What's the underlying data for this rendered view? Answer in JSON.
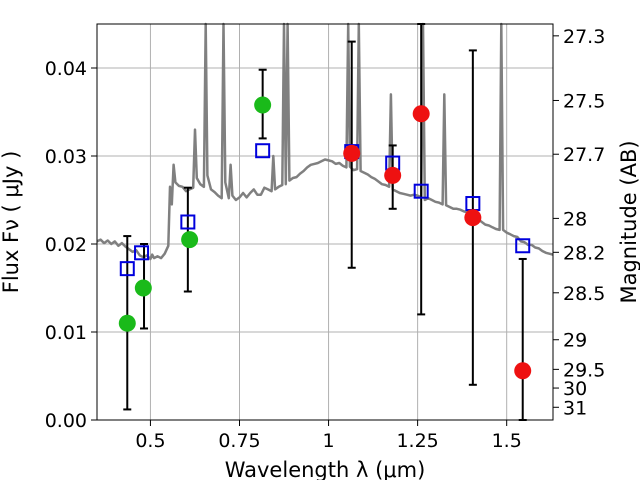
{
  "chart_data": {
    "type": "scatter",
    "title": "",
    "xlabel": "Wavelength  λ (μm)",
    "ylabel": "Flux  Fν  ( μJy )",
    "y2label": "Magnitude (AB)",
    "xlim": [
      0.35,
      1.63
    ],
    "ylim": [
      0.0,
      0.045
    ],
    "grid": true,
    "x_ticks": [
      {
        "value": 0.5,
        "label": "0.5"
      },
      {
        "value": 0.75,
        "label": "0.75"
      },
      {
        "value": 1.0,
        "label": "1"
      },
      {
        "value": 1.25,
        "label": "1.25"
      },
      {
        "value": 1.5,
        "label": "1.5"
      }
    ],
    "y_ticks": [
      {
        "value": 0.0,
        "label": "0.00"
      },
      {
        "value": 0.01,
        "label": "0.01"
      },
      {
        "value": 0.02,
        "label": "0.02"
      },
      {
        "value": 0.03,
        "label": "0.03"
      },
      {
        "value": 0.04,
        "label": "0.04"
      }
    ],
    "y2_ticks": [
      {
        "mag": 27.3,
        "label": "27.3"
      },
      {
        "mag": 27.5,
        "label": "27.5"
      },
      {
        "mag": 27.7,
        "label": "27.7"
      },
      {
        "mag": 28.0,
        "label": "28"
      },
      {
        "mag": 28.2,
        "label": "28.2"
      },
      {
        "mag": 28.5,
        "label": "28.5"
      },
      {
        "mag": 29.0,
        "label": "29"
      },
      {
        "mag": 29.5,
        "label": "29.5"
      },
      {
        "mag": 30.0,
        "label": "30"
      },
      {
        "mag": 31.0,
        "label": "31"
      }
    ],
    "colors": {
      "model": "#808080",
      "green": "#1aba1a",
      "red": "#ee1111",
      "box": "#0000dd",
      "errorbar": "#000000",
      "grid": "#b0b0b0"
    },
    "series": [
      {
        "kind": "model",
        "points": [
          [
            0.35,
            0.0203
          ],
          [
            0.36,
            0.0205
          ],
          [
            0.37,
            0.0201
          ],
          [
            0.38,
            0.0204
          ],
          [
            0.39,
            0.02
          ],
          [
            0.4,
            0.0203
          ],
          [
            0.41,
            0.0198
          ],
          [
            0.42,
            0.0201
          ],
          [
            0.43,
            0.0197
          ],
          [
            0.44,
            0.0194
          ],
          [
            0.45,
            0.0191
          ],
          [
            0.46,
            0.0193
          ],
          [
            0.47,
            0.0187
          ],
          [
            0.48,
            0.0185
          ],
          [
            0.49,
            0.0187
          ],
          [
            0.5,
            0.0183
          ],
          [
            0.505,
            0.0188
          ],
          [
            0.51,
            0.0184
          ],
          [
            0.52,
            0.0186
          ],
          [
            0.53,
            0.0184
          ],
          [
            0.54,
            0.0189
          ],
          [
            0.55,
            0.0198
          ],
          [
            0.555,
            0.0265
          ],
          [
            0.56,
            0.0245
          ],
          [
            0.565,
            0.029
          ],
          [
            0.57,
            0.027
          ],
          [
            0.58,
            0.0266
          ],
          [
            0.59,
            0.0265
          ],
          [
            0.6,
            0.026
          ],
          [
            0.61,
            0.0262
          ],
          [
            0.62,
            0.0264
          ],
          [
            0.625,
            0.033
          ],
          [
            0.63,
            0.0275
          ],
          [
            0.64,
            0.0268
          ],
          [
            0.65,
            0.0265
          ],
          [
            0.655,
            0.045
          ],
          [
            0.66,
            0.0278
          ],
          [
            0.67,
            0.0262
          ],
          [
            0.68,
            0.0259
          ],
          [
            0.69,
            0.0255
          ],
          [
            0.7,
            0.0252
          ],
          [
            0.705,
            0.045
          ],
          [
            0.71,
            0.027
          ],
          [
            0.72,
            0.0252
          ],
          [
            0.725,
            0.029
          ],
          [
            0.73,
            0.0255
          ],
          [
            0.74,
            0.025
          ],
          [
            0.75,
            0.0253
          ],
          [
            0.76,
            0.0258
          ],
          [
            0.77,
            0.0253
          ],
          [
            0.78,
            0.0258
          ],
          [
            0.79,
            0.0262
          ],
          [
            0.8,
            0.0256
          ],
          [
            0.81,
            0.0256
          ],
          [
            0.82,
            0.0264
          ],
          [
            0.83,
            0.0262
          ],
          [
            0.84,
            0.026
          ],
          [
            0.845,
            0.03
          ],
          [
            0.85,
            0.0262
          ],
          [
            0.86,
            0.0265
          ],
          [
            0.87,
            0.0267
          ],
          [
            0.875,
            0.045
          ],
          [
            0.88,
            0.0268
          ],
          [
            0.885,
            0.045
          ],
          [
            0.89,
            0.0272
          ],
          [
            0.9,
            0.0275
          ],
          [
            0.91,
            0.0276
          ],
          [
            0.92,
            0.028
          ],
          [
            0.93,
            0.0283
          ],
          [
            0.94,
            0.0287
          ],
          [
            0.95,
            0.029
          ],
          [
            0.96,
            0.0291
          ],
          [
            0.97,
            0.0292
          ],
          [
            0.98,
            0.0294
          ],
          [
            0.99,
            0.0296
          ],
          [
            1.0,
            0.0295
          ],
          [
            1.01,
            0.0294
          ],
          [
            1.02,
            0.0291
          ],
          [
            1.03,
            0.0292
          ],
          [
            1.04,
            0.0289
          ],
          [
            1.05,
            0.0287
          ],
          [
            1.055,
            0.045
          ],
          [
            1.06,
            0.0288
          ],
          [
            1.07,
            0.0284
          ],
          [
            1.08,
            0.0285
          ],
          [
            1.085,
            0.045
          ],
          [
            1.09,
            0.0283
          ],
          [
            1.1,
            0.0281
          ],
          [
            1.11,
            0.0279
          ],
          [
            1.12,
            0.0276
          ],
          [
            1.13,
            0.0274
          ],
          [
            1.14,
            0.0271
          ],
          [
            1.15,
            0.0268
          ],
          [
            1.16,
            0.0267
          ],
          [
            1.17,
            0.0265
          ],
          [
            1.175,
            0.037
          ],
          [
            1.18,
            0.0262
          ],
          [
            1.19,
            0.026
          ],
          [
            1.2,
            0.0258
          ],
          [
            1.21,
            0.0257
          ],
          [
            1.22,
            0.0256
          ],
          [
            1.23,
            0.0255
          ],
          [
            1.24,
            0.0256
          ],
          [
            1.25,
            0.0255
          ],
          [
            1.26,
            0.0253
          ],
          [
            1.265,
            0.045
          ],
          [
            1.27,
            0.025
          ],
          [
            1.28,
            0.0252
          ],
          [
            1.29,
            0.025
          ],
          [
            1.3,
            0.0248
          ],
          [
            1.31,
            0.0247
          ],
          [
            1.32,
            0.0245
          ],
          [
            1.325,
            0.037
          ],
          [
            1.33,
            0.0244
          ],
          [
            1.34,
            0.0242
          ],
          [
            1.35,
            0.024
          ],
          [
            1.36,
            0.024
          ],
          [
            1.37,
            0.0239
          ],
          [
            1.38,
            0.0237
          ],
          [
            1.39,
            0.0236
          ],
          [
            1.4,
            0.0238
          ],
          [
            1.41,
            0.0233
          ],
          [
            1.42,
            0.0228
          ],
          [
            1.43,
            0.0225
          ],
          [
            1.44,
            0.0222
          ],
          [
            1.45,
            0.0221
          ],
          [
            1.46,
            0.0219
          ],
          [
            1.47,
            0.0217
          ],
          [
            1.48,
            0.0216
          ],
          [
            1.485,
            0.045
          ],
          [
            1.49,
            0.0216
          ],
          [
            1.5,
            0.0213
          ],
          [
            1.51,
            0.0211
          ],
          [
            1.52,
            0.0209
          ],
          [
            1.53,
            0.0208
          ],
          [
            1.54,
            0.0203
          ],
          [
            1.55,
            0.0202
          ],
          [
            1.56,
            0.0199
          ],
          [
            1.57,
            0.0199
          ],
          [
            1.58,
            0.0196
          ],
          [
            1.59,
            0.0195
          ],
          [
            1.6,
            0.0192
          ],
          [
            1.61,
            0.019
          ],
          [
            1.62,
            0.0189
          ],
          [
            1.63,
            0.0188
          ]
        ]
      },
      {
        "kind": "boxes",
        "points": [
          {
            "x": 0.435,
            "y": 0.0172
          },
          {
            "x": 0.475,
            "y": 0.019
          },
          {
            "x": 0.605,
            "y": 0.0225
          },
          {
            "x": 0.815,
            "y": 0.0306
          },
          {
            "x": 1.065,
            "y": 0.0305
          },
          {
            "x": 1.18,
            "y": 0.0292
          },
          {
            "x": 1.26,
            "y": 0.026
          },
          {
            "x": 1.405,
            "y": 0.0246
          },
          {
            "x": 1.545,
            "y": 0.0198
          }
        ]
      },
      {
        "kind": "errorbars",
        "points": [
          {
            "x": 0.435,
            "lo": 0.0012,
            "hi": 0.0209
          },
          {
            "x": 0.482,
            "lo": 0.0104,
            "hi": 0.02
          },
          {
            "x": 0.605,
            "lo": 0.0146,
            "hi": 0.0264
          },
          {
            "x": 0.815,
            "lo": 0.032,
            "hi": 0.0398
          },
          {
            "x": 1.065,
            "lo": 0.0173,
            "hi": 0.043
          },
          {
            "x": 1.18,
            "lo": 0.024,
            "hi": 0.0312
          },
          {
            "x": 1.26,
            "lo": 0.012,
            "hi": 0.045
          },
          {
            "x": 1.405,
            "lo": 0.004,
            "hi": 0.042
          },
          {
            "x": 1.545,
            "lo": 0.0,
            "hi": 0.0183
          }
        ]
      },
      {
        "kind": "green_points",
        "points": [
          {
            "x": 0.435,
            "y": 0.011
          },
          {
            "x": 0.48,
            "y": 0.015
          },
          {
            "x": 0.61,
            "y": 0.0205
          },
          {
            "x": 0.815,
            "y": 0.0358
          }
        ]
      },
      {
        "kind": "red_points",
        "points": [
          {
            "x": 1.065,
            "y": 0.0303
          },
          {
            "x": 1.18,
            "y": 0.0278
          },
          {
            "x": 1.26,
            "y": 0.0348
          },
          {
            "x": 1.405,
            "y": 0.023
          },
          {
            "x": 1.545,
            "y": 0.0056
          }
        ]
      }
    ]
  }
}
